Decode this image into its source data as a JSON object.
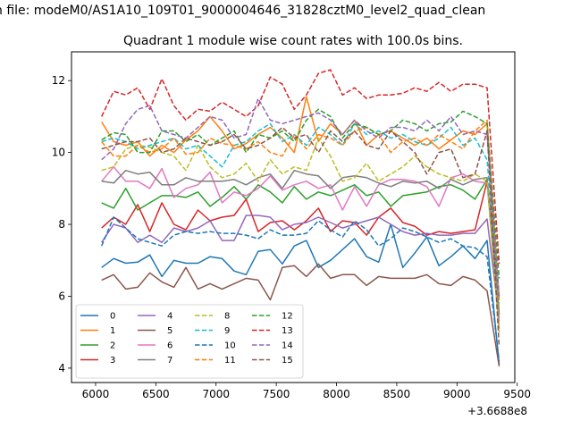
{
  "figure": {
    "suptitle": "n file: modeM0/AS1A10_109T01_9000004646_31828cztM0_level2_quad_clean",
    "title": "Quadrant 1 module wise count rates with 100.0s bins.",
    "x_offset_label": "+3.6688e8"
  },
  "chart_data": {
    "type": "line",
    "title": "Quadrant 1 module wise count rates with 100.0s bins.",
    "xlabel": "",
    "ylabel": "",
    "x_offset": 366880000,
    "xlim": [
      5800,
      9480
    ],
    "ylim": [
      3.6,
      12.8
    ],
    "xticks": [
      6000,
      6500,
      7000,
      7500,
      8000,
      8500,
      9000,
      9500
    ],
    "yticks": [
      4,
      6,
      8,
      10,
      12
    ],
    "grid": false,
    "legend_placement": "lower-left",
    "legend_columns": 4,
    "x": [
      6050,
      6150,
      6250,
      6350,
      6450,
      6550,
      6650,
      6750,
      6850,
      6950,
      7050,
      7150,
      7250,
      7350,
      7450,
      7550,
      7650,
      7750,
      7850,
      7950,
      8050,
      8150,
      8250,
      8350,
      8450,
      8550,
      8650,
      8750,
      8850,
      8950,
      9050,
      9150,
      9250,
      9350
    ],
    "series": [
      {
        "name": "0",
        "color": "#1f77b4",
        "dash": "solid",
        "values": [
          6.8,
          7.05,
          6.92,
          6.95,
          7.15,
          6.55,
          7.0,
          6.92,
          6.92,
          7.1,
          7.05,
          6.7,
          6.6,
          7.25,
          7.3,
          6.9,
          7.4,
          7.55,
          6.8,
          7.0,
          7.3,
          7.6,
          7.1,
          6.95,
          8.0,
          6.8,
          7.2,
          7.65,
          6.85,
          7.1,
          7.4,
          7.05,
          7.55,
          4.1
        ]
      },
      {
        "name": "1",
        "color": "#ff7f0e",
        "dash": "solid",
        "values": [
          10.85,
          10.3,
          10.2,
          10.3,
          9.9,
          10.2,
          10.0,
          10.35,
          10.6,
          11.0,
          10.6,
          10.1,
          10.25,
          10.5,
          10.7,
          10.4,
          10.0,
          11.55,
          10.3,
          10.8,
          10.5,
          10.9,
          10.2,
          10.5,
          10.6,
          10.4,
          10.2,
          10.4,
          10.1,
          10.35,
          10.6,
          10.5,
          10.8,
          5.5
        ]
      },
      {
        "name": "2",
        "color": "#2ca02c",
        "dash": "solid",
        "values": [
          8.6,
          8.45,
          9.0,
          8.4,
          8.6,
          8.8,
          8.8,
          8.75,
          8.9,
          8.5,
          8.75,
          9.05,
          8.7,
          9.1,
          8.9,
          8.6,
          9.05,
          8.7,
          8.9,
          8.8,
          8.95,
          9.1,
          8.8,
          8.9,
          8.5,
          8.8,
          8.85,
          8.9,
          9.05,
          9.1,
          8.95,
          8.7,
          9.25,
          5.5
        ]
      },
      {
        "name": "3",
        "color": "#d62728",
        "dash": "solid",
        "values": [
          7.9,
          8.2,
          8.0,
          8.55,
          7.8,
          8.6,
          8.0,
          7.85,
          8.4,
          8.1,
          8.2,
          8.25,
          8.7,
          7.8,
          8.05,
          8.1,
          7.85,
          8.1,
          8.45,
          7.8,
          8.1,
          8.05,
          7.7,
          8.2,
          8.45,
          8.05,
          7.95,
          7.7,
          7.8,
          7.75,
          7.8,
          7.85,
          9.2,
          6.0
        ]
      },
      {
        "name": "4",
        "color": "#9467bd",
        "dash": "solid",
        "values": [
          7.5,
          8.0,
          7.9,
          7.5,
          7.7,
          7.5,
          7.9,
          7.8,
          7.9,
          8.1,
          7.55,
          7.55,
          8.25,
          8.25,
          8.2,
          7.85,
          8.0,
          8.05,
          8.2,
          8.05,
          7.9,
          8.0,
          8.1,
          8.2,
          8.0,
          7.8,
          7.7,
          7.75,
          7.7,
          7.7,
          7.75,
          7.75,
          8.15,
          5.4
        ]
      },
      {
        "name": "5",
        "color": "#8c564b",
        "dash": "solid",
        "values": [
          6.45,
          6.6,
          6.2,
          6.25,
          6.65,
          6.4,
          6.25,
          6.8,
          6.2,
          6.35,
          6.2,
          6.35,
          6.5,
          6.45,
          5.9,
          6.8,
          6.85,
          6.55,
          6.9,
          6.5,
          6.6,
          6.6,
          6.3,
          6.55,
          6.5,
          6.5,
          6.5,
          6.6,
          6.35,
          6.3,
          6.55,
          6.45,
          6.15,
          4.05
        ]
      },
      {
        "name": "6",
        "color": "#e377c2",
        "dash": "solid",
        "values": [
          9.2,
          9.6,
          9.2,
          9.2,
          9.0,
          9.55,
          8.75,
          9.0,
          9.1,
          9.45,
          8.6,
          8.9,
          8.8,
          9.0,
          9.35,
          8.95,
          9.1,
          9.2,
          9.0,
          9.1,
          8.4,
          9.05,
          8.5,
          9.1,
          9.25,
          9.25,
          9.2,
          9.05,
          8.5,
          9.3,
          9.4,
          9.2,
          9.15,
          5.3
        ]
      },
      {
        "name": "7",
        "color": "#7f7f7f",
        "dash": "solid",
        "values": [
          9.2,
          9.15,
          9.5,
          9.4,
          9.45,
          9.1,
          9.1,
          9.3,
          9.2,
          9.2,
          9.2,
          9.25,
          9.1,
          9.3,
          9.4,
          9.0,
          9.5,
          9.4,
          9.35,
          9.0,
          9.3,
          9.35,
          9.3,
          9.15,
          9.05,
          9.2,
          9.15,
          9.2,
          9.0,
          9.25,
          9.1,
          9.25,
          9.3,
          5.1
        ]
      },
      {
        "name": "8",
        "color": "#bcbd22",
        "dash": "dashed",
        "values": [
          9.5,
          9.6,
          10.1,
          10.2,
          10.15,
          10.0,
          9.9,
          9.5,
          10.2,
          9.6,
          9.3,
          9.4,
          9.7,
          9.2,
          9.8,
          9.4,
          9.6,
          9.5,
          10.4,
          9.9,
          9.2,
          9.3,
          9.7,
          9.2,
          9.4,
          9.6,
          9.9,
          9.6,
          9.4,
          9.3,
          9.2,
          9.4,
          9.2,
          5.0
        ]
      },
      {
        "name": "9",
        "color": "#17becf",
        "dash": "dashed",
        "values": [
          10.3,
          10.4,
          10.3,
          10.1,
          10.2,
          10.3,
          10.4,
          10.1,
          10.2,
          9.9,
          9.6,
          10.2,
          10.3,
          10.6,
          10.8,
          10.3,
          10.5,
          10.2,
          10.7,
          10.5,
          10.2,
          10.8,
          10.5,
          10.6,
          10.4,
          10.5,
          10.3,
          10.2,
          10.4,
          10.7,
          10.2,
          10.4,
          9.8,
          5.8
        ]
      },
      {
        "name": "10",
        "color": "#1f77b4",
        "dash": "dashed",
        "values": [
          7.4,
          8.2,
          7.9,
          7.6,
          7.5,
          7.4,
          7.7,
          7.8,
          7.75,
          7.8,
          7.75,
          7.75,
          7.7,
          7.6,
          7.85,
          7.7,
          7.7,
          7.75,
          8.1,
          7.85,
          7.65,
          8.1,
          7.85,
          7.4,
          7.6,
          7.9,
          7.8,
          7.65,
          7.5,
          7.6,
          7.4,
          7.35,
          7.1,
          4.2
        ]
      },
      {
        "name": "11",
        "color": "#ff7f0e",
        "dash": "dashed",
        "values": [
          10.3,
          9.9,
          9.9,
          10.2,
          10.0,
          10.1,
          10.4,
          9.95,
          10.0,
          10.4,
          10.25,
          10.2,
          10.1,
          10.3,
          10.0,
          9.9,
          10.5,
          10.1,
          10.5,
          10.4,
          10.2,
          10.6,
          10.7,
          10.5,
          10.0,
          10.3,
          10.4,
          10.2,
          10.5,
          10.3,
          10.1,
          10.6,
          10.9,
          5.9
        ]
      },
      {
        "name": "12",
        "color": "#2ca02c",
        "dash": "dashed",
        "values": [
          10.35,
          10.55,
          10.5,
          10.0,
          10.0,
          10.6,
          10.6,
          10.3,
          10.5,
          10.2,
          10.4,
          10.6,
          10.0,
          10.5,
          10.4,
          10.6,
          10.3,
          10.9,
          11.2,
          11.0,
          10.4,
          10.8,
          10.7,
          10.5,
          10.6,
          10.9,
          10.8,
          10.6,
          10.8,
          10.85,
          11.15,
          11.0,
          10.8,
          6.5
        ]
      },
      {
        "name": "13",
        "color": "#d62728",
        "dash": "dashed",
        "values": [
          11.0,
          11.7,
          11.6,
          11.8,
          11.2,
          12.05,
          11.3,
          10.9,
          11.2,
          11.15,
          11.4,
          11.2,
          11.0,
          11.3,
          12.1,
          11.9,
          11.2,
          11.6,
          12.2,
          12.3,
          11.6,
          11.8,
          11.5,
          11.6,
          11.6,
          11.65,
          11.8,
          11.7,
          11.95,
          11.7,
          11.9,
          11.9,
          11.8,
          6.9
        ]
      },
      {
        "name": "14",
        "color": "#9467bd",
        "dash": "dashed",
        "values": [
          9.8,
          10.1,
          10.8,
          11.2,
          11.3,
          10.6,
          10.5,
          10.4,
          10.7,
          11.0,
          10.9,
          10.4,
          10.5,
          11.5,
          10.9,
          10.8,
          10.9,
          11.0,
          11.1,
          10.9,
          10.5,
          10.9,
          10.6,
          10.4,
          10.7,
          10.7,
          10.6,
          10.9,
          10.6,
          11.0,
          10.5,
          10.6,
          10.5,
          6.0
        ]
      },
      {
        "name": "15",
        "color": "#8c564b",
        "dash": "dashed",
        "values": [
          10.1,
          10.2,
          10.3,
          10.3,
          10.4,
          10.0,
          10.1,
          10.4,
          10.3,
          10.2,
          10.3,
          10.5,
          10.1,
          10.2,
          10.4,
          10.7,
          10.4,
          10.5,
          10.0,
          10.6,
          10.3,
          10.6,
          10.2,
          10.1,
          10.6,
          10.3,
          10.0,
          9.4,
          10.0,
          10.1,
          9.3,
          9.4,
          10.6,
          4.6
        ]
      }
    ]
  }
}
